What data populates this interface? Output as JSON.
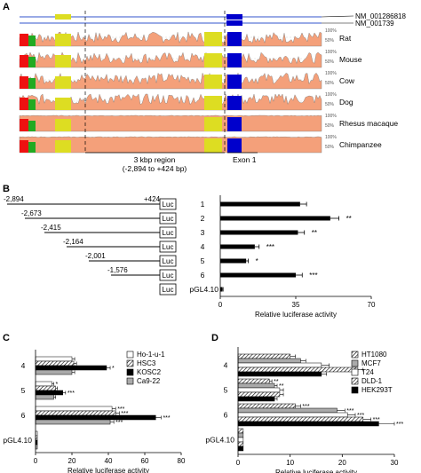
{
  "panelA": {
    "letter": "A",
    "transcripts": [
      "NM_001286818",
      "NM_001739"
    ],
    "species": [
      {
        "name": "Rat",
        "axis_top": "100%",
        "axis_bottom": "50%"
      },
      {
        "name": "Mouse",
        "axis_top": "100%",
        "axis_bottom": "50%"
      },
      {
        "name": "Cow",
        "axis_top": "100%",
        "axis_bottom": "50%"
      },
      {
        "name": "Dog",
        "axis_top": "100%",
        "axis_bottom": "50%"
      },
      {
        "name": "Rhesus macaque",
        "axis_top": "100%",
        "axis_bottom": "50%"
      },
      {
        "name": "Chimpanzee",
        "axis_top": "100%",
        "axis_bottom": "50%"
      }
    ],
    "region_label_line1": "3 kbp region",
    "region_label_line2": "(-2,894 to +424 bp)",
    "exon_label": "Exon 1",
    "colors": {
      "conserved": "#f4a07a",
      "exon": "#0000cc",
      "utr": "#dddd22",
      "cns": "#ee1111",
      "green": "#22aa22"
    }
  },
  "panelB": {
    "letter": "B",
    "constructs": [
      {
        "start": "-2,894",
        "end": "+424",
        "box": "Luc",
        "num": "1",
        "value": 37,
        "err": 3,
        "sig": ""
      },
      {
        "start": "-2,673",
        "end": "",
        "box": "Luc",
        "num": "2",
        "value": 51,
        "err": 4,
        "sig": "**"
      },
      {
        "start": "-2,415",
        "end": "",
        "box": "Luc",
        "num": "3",
        "value": 36,
        "err": 3,
        "sig": "**"
      },
      {
        "start": "-2,164",
        "end": "",
        "box": "Luc",
        "num": "4",
        "value": 16,
        "err": 2,
        "sig": "***"
      },
      {
        "start": "-2,001",
        "end": "",
        "box": "Luc",
        "num": "5",
        "value": 12,
        "err": 1,
        "sig": "*"
      },
      {
        "start": "-1,576",
        "end": "",
        "box": "Luc",
        "num": "6",
        "value": 35,
        "err": 3,
        "sig": "***"
      },
      {
        "start": "",
        "end": "",
        "box": "Luc",
        "num": "pGL4.10",
        "value": 1,
        "err": 0.3,
        "sig": ""
      }
    ]
  },
  "chart_data": [
    {
      "type": "bar",
      "panel": "B",
      "orientation": "horizontal",
      "categories": [
        "1",
        "2",
        "3",
        "4",
        "5",
        "6",
        "pGL4.10"
      ],
      "values": [
        37,
        51,
        36,
        16,
        12,
        35,
        1
      ],
      "errors": [
        3,
        4,
        3,
        2,
        1,
        3,
        0.3
      ],
      "xlabel": "Relative luciferase activity",
      "xticks": [
        "0",
        "35",
        "70"
      ],
      "xlim": [
        0,
        70
      ]
    },
    {
      "type": "bar",
      "panel": "C",
      "orientation": "horizontal",
      "categories": [
        "4",
        "5",
        "6",
        "pGL4.10"
      ],
      "series": [
        {
          "name": "Ho-1-u-1",
          "values": [
            20,
            9,
            42,
            1
          ],
          "errors": [
            1.5,
            1,
            2,
            0.2
          ],
          "sig": [
            "",
            "*",
            "***",
            ""
          ],
          "fill": "#ffffff",
          "pattern": "none"
        },
        {
          "name": "HSC3",
          "values": [
            21,
            11,
            44,
            1
          ],
          "errors": [
            1.5,
            1,
            2,
            0.2
          ],
          "sig": [
            "",
            "",
            "***",
            ""
          ],
          "fill": "#ffffff",
          "pattern": "hatch"
        },
        {
          "name": "KOSC2",
          "values": [
            39,
            15,
            66,
            1
          ],
          "errors": [
            2,
            1.5,
            3,
            0.2
          ],
          "sig": [
            "*",
            "***",
            "***",
            ""
          ],
          "fill": "#000000",
          "pattern": "none"
        },
        {
          "name": "Ca9-22",
          "values": [
            20,
            10,
            41,
            1
          ],
          "errors": [
            1.5,
            1,
            2,
            0.2
          ],
          "sig": [
            "",
            "",
            "***",
            ""
          ],
          "fill": "#aaaaaa",
          "pattern": "none"
        }
      ],
      "xlabel": "Relative luciferase activity",
      "xticks": [
        "0",
        "20",
        "40",
        "60",
        "80"
      ],
      "xlim": [
        0,
        80
      ],
      "legend": "top-right"
    },
    {
      "type": "bar",
      "panel": "D",
      "orientation": "horizontal",
      "categories": [
        "4",
        "5",
        "6",
        "pGL4.10"
      ],
      "series": [
        {
          "name": "HT1080",
          "values": [
            10,
            6,
            11,
            1
          ],
          "errors": [
            1,
            0.5,
            1,
            0.2
          ],
          "sig": [
            "",
            "**",
            "***",
            ""
          ],
          "fill": "#ffffff",
          "pattern": "hatch"
        },
        {
          "name": "MCF7",
          "values": [
            12,
            7,
            19,
            1
          ],
          "errors": [
            1,
            0.5,
            1.5,
            0.2
          ],
          "sig": [
            "",
            "**",
            "***",
            ""
          ],
          "fill": "#aaaaaa",
          "pattern": "none"
        },
        {
          "name": "T24",
          "values": [
            16,
            8,
            21,
            1
          ],
          "errors": [
            1.5,
            0.7,
            1.5,
            0.2
          ],
          "sig": [
            "",
            "",
            "***",
            ""
          ],
          "fill": "#ffffff",
          "pattern": "none"
        },
        {
          "name": "DLD-1",
          "values": [
            23,
            8,
            24,
            1
          ],
          "errors": [
            1,
            0.7,
            1.5,
            0.2
          ],
          "sig": [
            "",
            "",
            "***",
            ""
          ],
          "fill": "#ffffff",
          "pattern": "hatch"
        },
        {
          "name": "HEK293T",
          "values": [
            16,
            7,
            27,
            1
          ],
          "errors": [
            1,
            0.5,
            3,
            0.2
          ],
          "sig": [
            "",
            "",
            "***",
            ""
          ],
          "fill": "#000000",
          "pattern": "none"
        }
      ],
      "xlabel": "Relative luciferase activity",
      "xticks": [
        "0",
        "10",
        "20",
        "30"
      ],
      "xlim": [
        0,
        30
      ],
      "legend": "top-right"
    }
  ]
}
